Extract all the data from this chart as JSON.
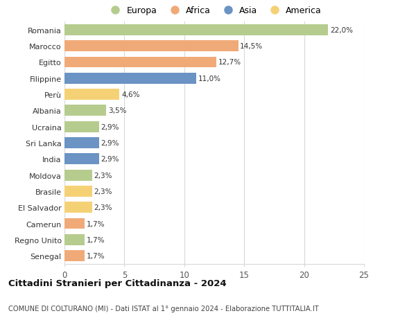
{
  "categories": [
    "Romania",
    "Marocco",
    "Egitto",
    "Filippine",
    "Perù",
    "Albania",
    "Ucraina",
    "Sri Lanka",
    "India",
    "Moldova",
    "Brasile",
    "El Salvador",
    "Camerun",
    "Regno Unito",
    "Senegal"
  ],
  "values": [
    22.0,
    14.5,
    12.7,
    11.0,
    4.6,
    3.5,
    2.9,
    2.9,
    2.9,
    2.3,
    2.3,
    2.3,
    1.7,
    1.7,
    1.7
  ],
  "labels": [
    "22,0%",
    "14,5%",
    "12,7%",
    "11,0%",
    "4,6%",
    "3,5%",
    "2,9%",
    "2,9%",
    "2,9%",
    "2,3%",
    "2,3%",
    "2,3%",
    "1,7%",
    "1,7%",
    "1,7%"
  ],
  "continents": [
    "Europa",
    "Africa",
    "Africa",
    "Asia",
    "America",
    "Europa",
    "Europa",
    "Asia",
    "Asia",
    "Europa",
    "America",
    "America",
    "Africa",
    "Europa",
    "Africa"
  ],
  "colors": {
    "Europa": "#b5cc8e",
    "Africa": "#f0aa78",
    "Asia": "#6b93c4",
    "America": "#f5d176"
  },
  "legend_order": [
    "Europa",
    "Africa",
    "Asia",
    "America"
  ],
  "title": "Cittadini Stranieri per Cittadinanza - 2024",
  "subtitle": "COMUNE DI COLTURANO (MI) - Dati ISTAT al 1° gennaio 2024 - Elaborazione TUTTITALIA.IT",
  "xlim": [
    0,
    25
  ],
  "xticks": [
    0,
    5,
    10,
    15,
    20,
    25
  ],
  "background_color": "#ffffff",
  "grid_color": "#d8d8d8"
}
